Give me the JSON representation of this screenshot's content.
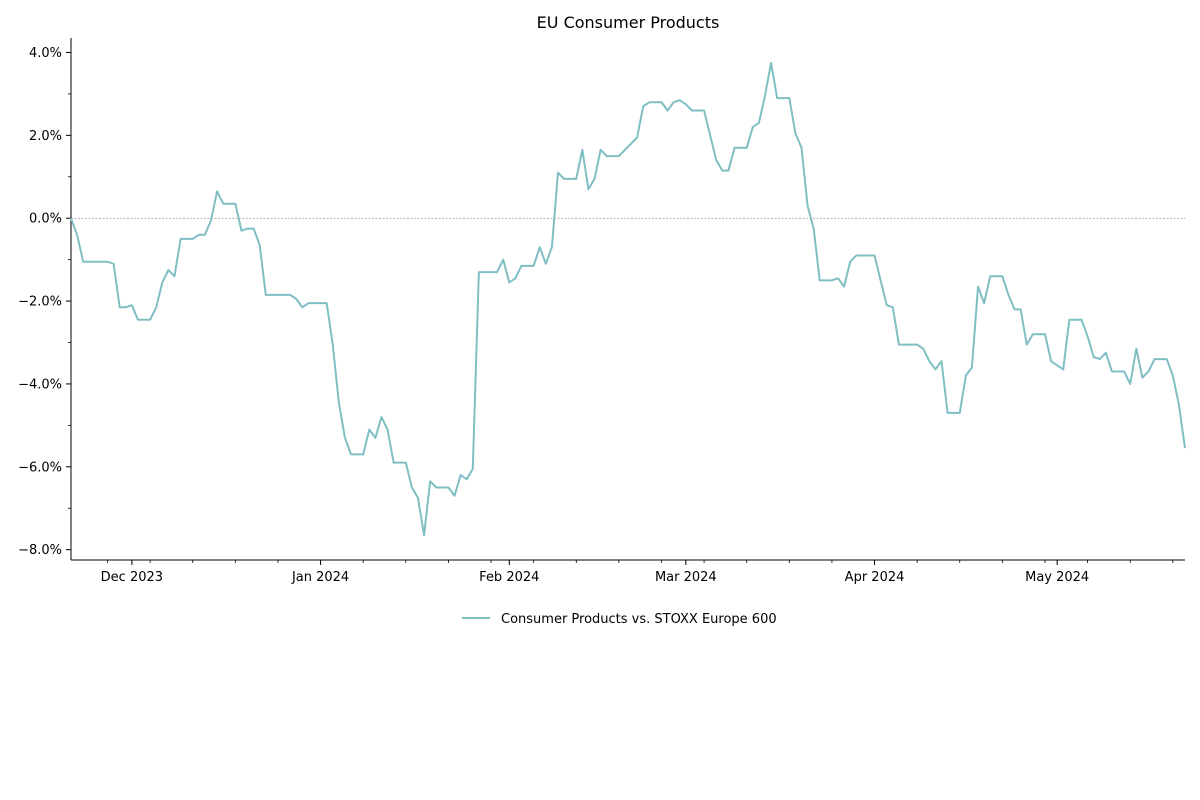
{
  "chart_data": {
    "type": "line",
    "title": "EU Consumer Products",
    "xlabel": "",
    "ylabel": "",
    "x_start": "2023-11-21",
    "x_end": "2024-05-22",
    "ylim": [
      -8.25,
      4.35
    ],
    "y_ticks": [
      -8,
      -6,
      -4,
      -2,
      0,
      2,
      4
    ],
    "y_tick_labels": [
      "−8.0%",
      "−6.0%",
      "−4.0%",
      "−2.0%",
      "0.0%",
      "2.0%",
      "4.0%"
    ],
    "x_ticks": [
      "2023-12-01",
      "2024-01-01",
      "2024-02-01",
      "2024-03-01",
      "2024-04-01",
      "2024-05-01"
    ],
    "x_tick_labels": [
      "Dec 2023",
      "Jan 2024",
      "Feb 2024",
      "Mar 2024",
      "Apr 2024",
      "May 2024"
    ],
    "grid": false,
    "zero_line": true,
    "legend_position": "bottom-center",
    "series": [
      {
        "name": "Consumer Products vs. STOXX Europe 600",
        "color": "#7fbfc4",
        "points": [
          [
            "2023-11-21",
            0.0
          ],
          [
            "2023-11-22",
            -0.4
          ],
          [
            "2023-11-23",
            -1.05
          ],
          [
            "2023-11-24",
            -1.05
          ],
          [
            "2023-11-27",
            -1.05
          ],
          [
            "2023-11-28",
            -1.1
          ],
          [
            "2023-11-29",
            -2.15
          ],
          [
            "2023-11-30",
            -2.15
          ],
          [
            "2023-12-01",
            -2.1
          ],
          [
            "2023-12-02",
            -2.45
          ],
          [
            "2023-12-04",
            -2.45
          ],
          [
            "2023-12-05",
            -2.15
          ],
          [
            "2023-12-06",
            -1.55
          ],
          [
            "2023-12-07",
            -1.25
          ],
          [
            "2023-12-08",
            -1.4
          ],
          [
            "2023-12-09",
            -0.5
          ],
          [
            "2023-12-11",
            -0.5
          ],
          [
            "2023-12-12",
            -0.4
          ],
          [
            "2023-12-13",
            -0.4
          ],
          [
            "2023-12-14",
            -0.05
          ],
          [
            "2023-12-15",
            0.65
          ],
          [
            "2023-12-16",
            0.35
          ],
          [
            "2023-12-18",
            0.35
          ],
          [
            "2023-12-19",
            -0.3
          ],
          [
            "2023-12-20",
            -0.25
          ],
          [
            "2023-12-21",
            -0.25
          ],
          [
            "2023-12-22",
            -0.65
          ],
          [
            "2023-12-23",
            -1.85
          ],
          [
            "2023-12-27",
            -1.85
          ],
          [
            "2023-12-28",
            -1.95
          ],
          [
            "2023-12-29",
            -2.15
          ],
          [
            "2023-12-30",
            -2.05
          ],
          [
            "2024-01-02",
            -2.05
          ],
          [
            "2024-01-03",
            -3.05
          ],
          [
            "2024-01-04",
            -4.45
          ],
          [
            "2024-01-05",
            -5.3
          ],
          [
            "2024-01-06",
            -5.7
          ],
          [
            "2024-01-08",
            -5.7
          ],
          [
            "2024-01-09",
            -5.1
          ],
          [
            "2024-01-10",
            -5.3
          ],
          [
            "2024-01-11",
            -4.8
          ],
          [
            "2024-01-12",
            -5.1
          ],
          [
            "2024-01-13",
            -5.9
          ],
          [
            "2024-01-15",
            -5.9
          ],
          [
            "2024-01-16",
            -6.5
          ],
          [
            "2024-01-17",
            -6.75
          ],
          [
            "2024-01-18",
            -7.65
          ],
          [
            "2024-01-19",
            -6.35
          ],
          [
            "2024-01-20",
            -6.5
          ],
          [
            "2024-01-22",
            -6.5
          ],
          [
            "2024-01-23",
            -6.7
          ],
          [
            "2024-01-24",
            -6.2
          ],
          [
            "2024-01-25",
            -6.3
          ],
          [
            "2024-01-26",
            -6.05
          ],
          [
            "2024-01-27",
            -1.3
          ],
          [
            "2024-01-30",
            -1.3
          ],
          [
            "2024-01-31",
            -1.0
          ],
          [
            "2024-02-01",
            -1.55
          ],
          [
            "2024-02-02",
            -1.45
          ],
          [
            "2024-02-03",
            -1.15
          ],
          [
            "2024-02-05",
            -1.15
          ],
          [
            "2024-02-06",
            -0.7
          ],
          [
            "2024-02-07",
            -1.1
          ],
          [
            "2024-02-08",
            -0.7
          ],
          [
            "2024-02-09",
            1.1
          ],
          [
            "2024-02-10",
            0.95
          ],
          [
            "2024-02-12",
            0.95
          ],
          [
            "2024-02-13",
            1.65
          ],
          [
            "2024-02-14",
            0.7
          ],
          [
            "2024-02-15",
            0.95
          ],
          [
            "2024-02-16",
            1.65
          ],
          [
            "2024-02-17",
            1.5
          ],
          [
            "2024-02-19",
            1.5
          ],
          [
            "2024-02-20",
            1.65
          ],
          [
            "2024-02-21",
            1.8
          ],
          [
            "2024-02-22",
            1.95
          ],
          [
            "2024-02-23",
            2.7
          ],
          [
            "2024-02-24",
            2.8
          ],
          [
            "2024-02-26",
            2.8
          ],
          [
            "2024-02-27",
            2.6
          ],
          [
            "2024-02-28",
            2.8
          ],
          [
            "2024-02-29",
            2.85
          ],
          [
            "2024-03-01",
            2.75
          ],
          [
            "2024-03-02",
            2.6
          ],
          [
            "2024-03-04",
            2.6
          ],
          [
            "2024-03-05",
            2.0
          ],
          [
            "2024-03-06",
            1.4
          ],
          [
            "2024-03-07",
            1.15
          ],
          [
            "2024-03-08",
            1.15
          ],
          [
            "2024-03-09",
            1.7
          ],
          [
            "2024-03-11",
            1.7
          ],
          [
            "2024-03-12",
            2.2
          ],
          [
            "2024-03-13",
            2.3
          ],
          [
            "2024-03-14",
            2.95
          ],
          [
            "2024-03-15",
            3.75
          ],
          [
            "2024-03-16",
            2.9
          ],
          [
            "2024-03-18",
            2.9
          ],
          [
            "2024-03-19",
            2.05
          ],
          [
            "2024-03-20",
            1.7
          ],
          [
            "2024-03-21",
            0.3
          ],
          [
            "2024-03-22",
            -0.25
          ],
          [
            "2024-03-23",
            -1.5
          ],
          [
            "2024-03-25",
            -1.5
          ],
          [
            "2024-03-26",
            -1.45
          ],
          [
            "2024-03-27",
            -1.65
          ],
          [
            "2024-03-28",
            -1.05
          ],
          [
            "2024-03-29",
            -0.9
          ],
          [
            "2024-04-01",
            -0.9
          ],
          [
            "2024-04-02",
            -1.5
          ],
          [
            "2024-04-03",
            -2.1
          ],
          [
            "2024-04-04",
            -2.15
          ],
          [
            "2024-04-05",
            -3.05
          ],
          [
            "2024-04-06",
            -3.05
          ],
          [
            "2024-04-08",
            -3.05
          ],
          [
            "2024-04-09",
            -3.15
          ],
          [
            "2024-04-10",
            -3.45
          ],
          [
            "2024-04-11",
            -3.65
          ],
          [
            "2024-04-12",
            -3.45
          ],
          [
            "2024-04-13",
            -4.7
          ],
          [
            "2024-04-15",
            -4.7
          ],
          [
            "2024-04-16",
            -3.8
          ],
          [
            "2024-04-17",
            -3.6
          ],
          [
            "2024-04-18",
            -1.65
          ],
          [
            "2024-04-19",
            -2.05
          ],
          [
            "2024-04-20",
            -1.4
          ],
          [
            "2024-04-22",
            -1.4
          ],
          [
            "2024-04-23",
            -1.85
          ],
          [
            "2024-04-24",
            -2.2
          ],
          [
            "2024-04-25",
            -2.2
          ],
          [
            "2024-04-26",
            -3.05
          ],
          [
            "2024-04-27",
            -2.8
          ],
          [
            "2024-04-29",
            -2.8
          ],
          [
            "2024-04-30",
            -3.45
          ],
          [
            "2024-05-01",
            -3.55
          ],
          [
            "2024-05-02",
            -3.65
          ],
          [
            "2024-05-03",
            -2.45
          ],
          [
            "2024-05-04",
            -2.45
          ],
          [
            "2024-05-05",
            -2.45
          ],
          [
            "2024-05-06",
            -2.85
          ],
          [
            "2024-05-07",
            -3.35
          ],
          [
            "2024-05-08",
            -3.4
          ],
          [
            "2024-05-09",
            -3.25
          ],
          [
            "2024-05-10",
            -3.7
          ],
          [
            "2024-05-12",
            -3.7
          ],
          [
            "2024-05-13",
            -4.0
          ],
          [
            "2024-05-14",
            -3.15
          ],
          [
            "2024-05-15",
            -3.85
          ],
          [
            "2024-05-16",
            -3.7
          ],
          [
            "2024-05-17",
            -3.4
          ],
          [
            "2024-05-19",
            -3.4
          ],
          [
            "2024-05-20",
            -3.8
          ],
          [
            "2024-05-21",
            -4.5
          ],
          [
            "2024-05-22",
            -5.55
          ]
        ]
      }
    ]
  }
}
